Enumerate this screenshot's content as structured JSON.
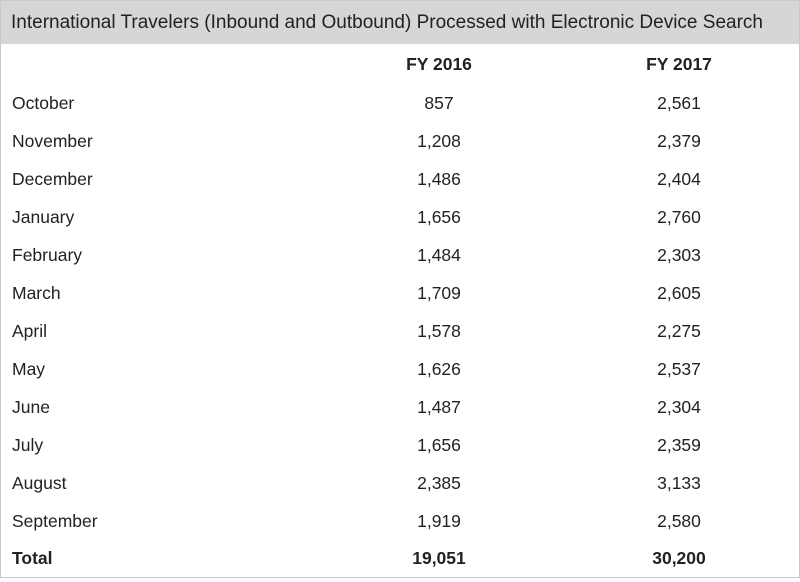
{
  "chart_data": {
    "type": "table",
    "title": "International Travelers (Inbound and Outbound) Processed with Electronic Device Search",
    "columns": [
      "",
      "FY 2016",
      "FY 2017"
    ],
    "rows": [
      {
        "month": "October",
        "fy2016": "857",
        "fy2017": "2,561"
      },
      {
        "month": "November",
        "fy2016": "1,208",
        "fy2017": "2,379"
      },
      {
        "month": "December",
        "fy2016": "1,486",
        "fy2017": "2,404"
      },
      {
        "month": "January",
        "fy2016": "1,656",
        "fy2017": "2,760"
      },
      {
        "month": "February",
        "fy2016": "1,484",
        "fy2017": "2,303"
      },
      {
        "month": "March",
        "fy2016": "1,709",
        "fy2017": "2,605"
      },
      {
        "month": "April",
        "fy2016": "1,578",
        "fy2017": "2,275"
      },
      {
        "month": "May",
        "fy2016": "1,626",
        "fy2017": "2,537"
      },
      {
        "month": "June",
        "fy2016": "1,487",
        "fy2017": "2,304"
      },
      {
        "month": "July",
        "fy2016": "1,656",
        "fy2017": "2,359"
      },
      {
        "month": "August",
        "fy2016": "2,385",
        "fy2017": "3,133"
      },
      {
        "month": "September",
        "fy2016": "1,919",
        "fy2017": "2,580"
      }
    ],
    "total": {
      "label": "Total",
      "fy2016": "19,051",
      "fy2017": "30,200"
    }
  }
}
